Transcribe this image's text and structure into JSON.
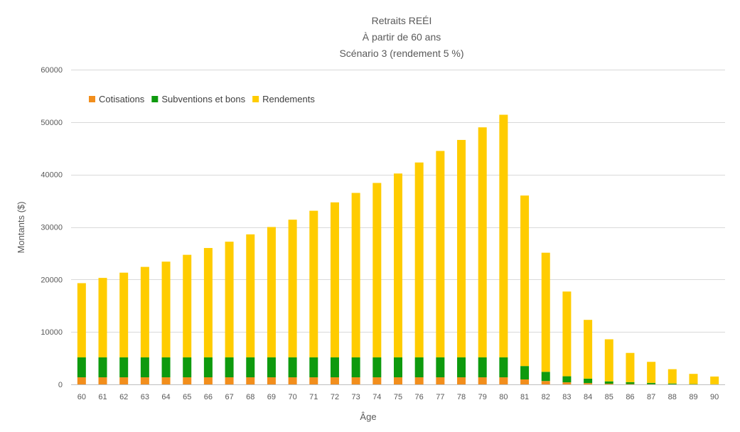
{
  "chart_data": {
    "type": "bar",
    "stacked": true,
    "title_lines": [
      "Retraits REÉI",
      "À partir de 60 ans",
      "Scénario 3 (rendement 5 %)"
    ],
    "xlabel": "Âge",
    "ylabel": "Montants ($)",
    "ylim": [
      0,
      60000
    ],
    "yticks": [
      0,
      10000,
      20000,
      30000,
      40000,
      50000,
      60000
    ],
    "grid": true,
    "legend_position": "top-left",
    "categories": [
      "60",
      "61",
      "62",
      "63",
      "64",
      "65",
      "66",
      "67",
      "68",
      "69",
      "70",
      "71",
      "72",
      "73",
      "74",
      "75",
      "76",
      "77",
      "78",
      "79",
      "80",
      "81",
      "82",
      "83",
      "84",
      "85",
      "86",
      "87",
      "88",
      "89",
      "90"
    ],
    "series": [
      {
        "name": "Cotisations",
        "color": "#f28e1c",
        "values": [
          1350,
          1350,
          1350,
          1350,
          1350,
          1350,
          1350,
          1350,
          1350,
          1350,
          1350,
          1350,
          1350,
          1350,
          1350,
          1350,
          1350,
          1350,
          1350,
          1350,
          1350,
          950,
          650,
          400,
          250,
          130,
          70,
          40,
          20,
          5,
          0
        ]
      },
      {
        "name": "Subventions et bons",
        "color": "#0e9a0e",
        "values": [
          3800,
          3800,
          3800,
          3800,
          3800,
          3800,
          3800,
          3800,
          3800,
          3800,
          3800,
          3800,
          3800,
          3800,
          3800,
          3800,
          3800,
          3800,
          3800,
          3800,
          3800,
          2550,
          1750,
          1150,
          850,
          450,
          350,
          250,
          150,
          50,
          20
        ]
      },
      {
        "name": "Rendements",
        "color": "#ffcc00",
        "values": [
          14150,
          15150,
          16150,
          17250,
          18250,
          19550,
          20850,
          22050,
          23450,
          24850,
          26250,
          27950,
          29550,
          31350,
          33250,
          35050,
          37150,
          39350,
          41450,
          43850,
          46250,
          32500,
          22700,
          16150,
          11200,
          8020,
          5580,
          4010,
          2730,
          1950,
          1480
        ]
      }
    ]
  }
}
